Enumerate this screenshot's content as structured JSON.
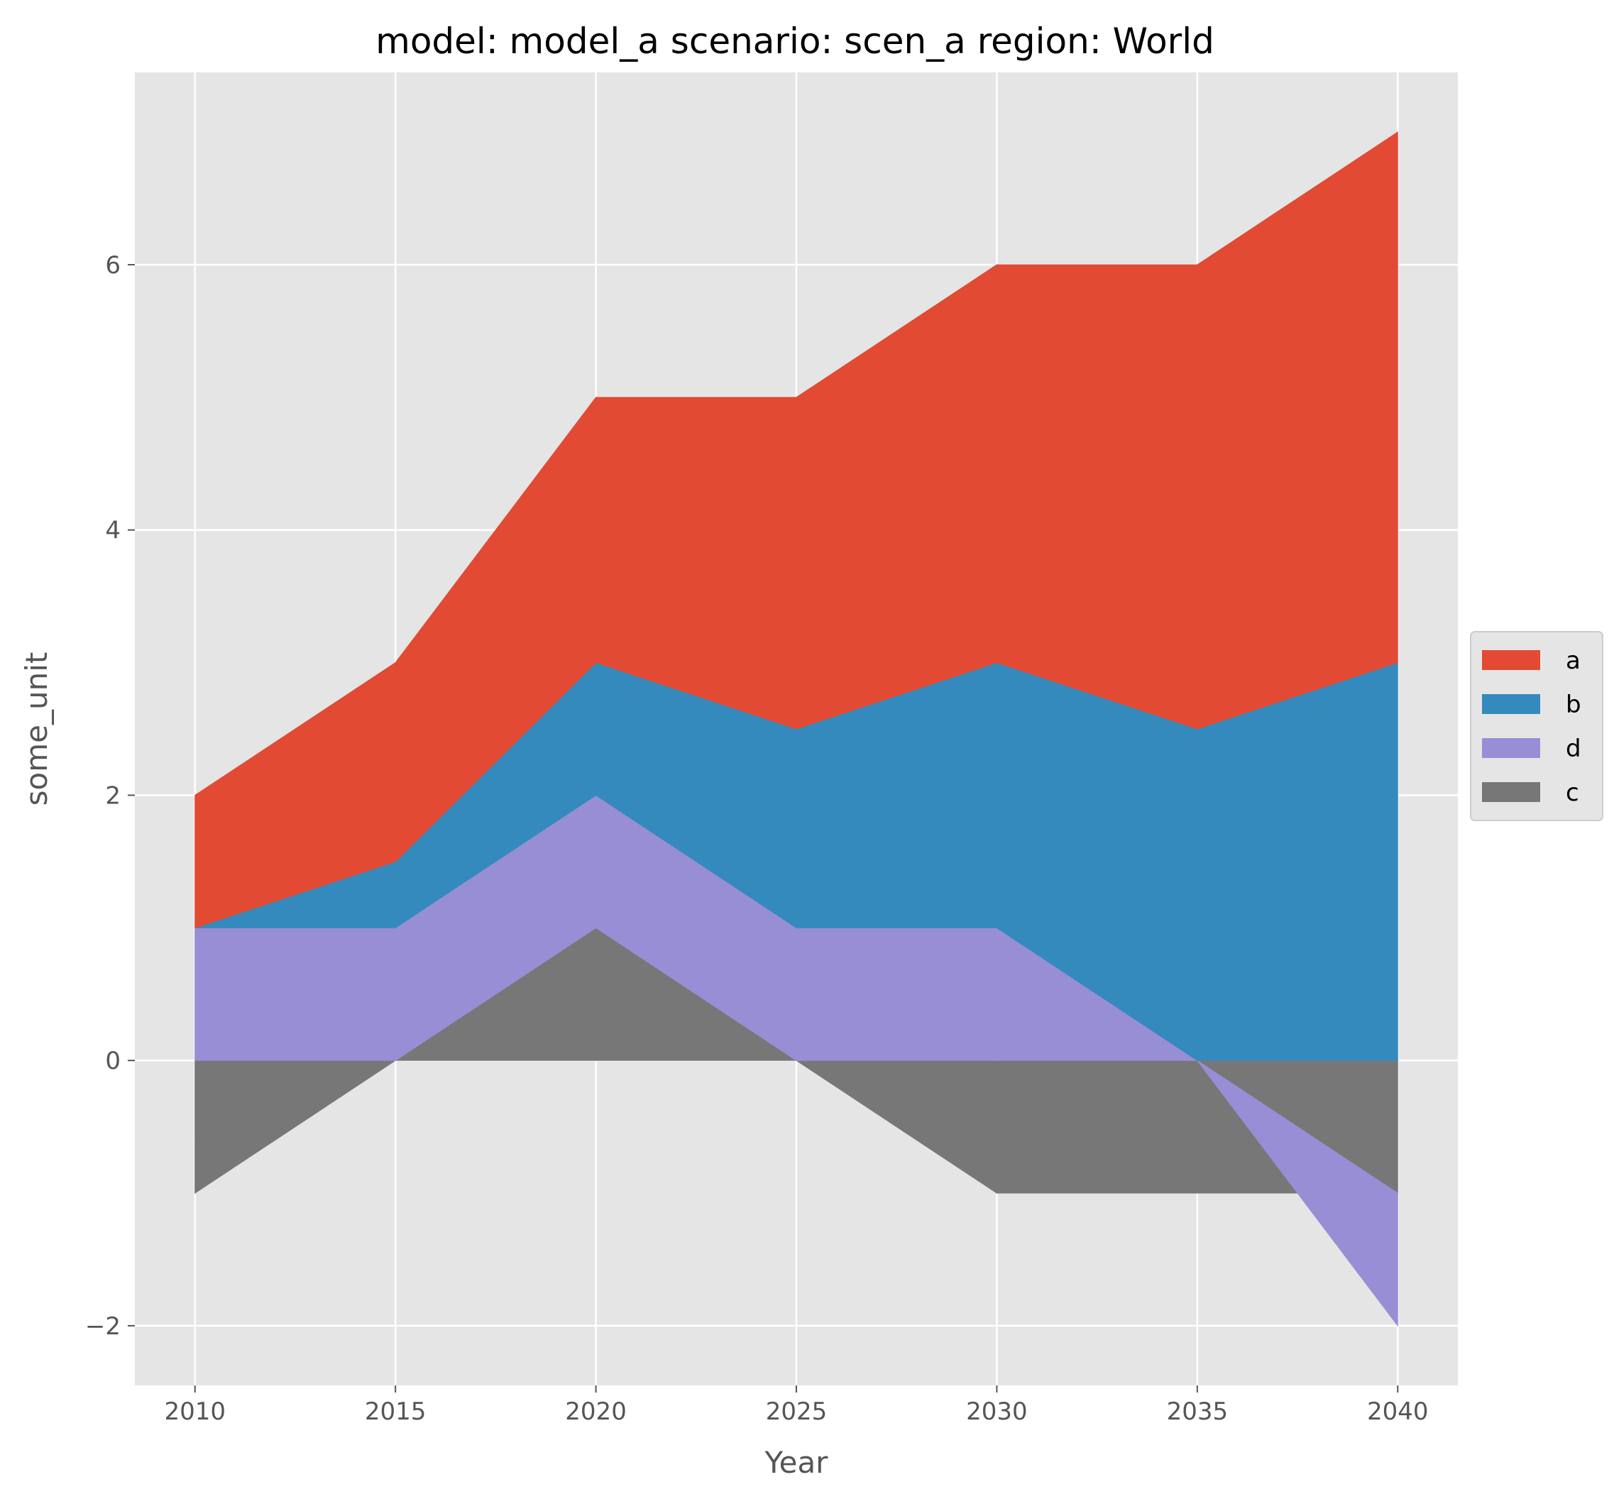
{
  "chart_data": {
    "type": "area",
    "stacked": true,
    "diverging": true,
    "title": "model: model_a scenario: scen_a region: World",
    "xlabel": "Year",
    "ylabel": "some_unit",
    "x": [
      2010,
      2015,
      2020,
      2025,
      2030,
      2035,
      2040
    ],
    "xticks": [
      "2010",
      "2015",
      "2020",
      "2025",
      "2030",
      "2035",
      "2040"
    ],
    "yticks": [
      -2,
      0,
      2,
      4,
      6
    ],
    "ytick_labels": [
      "−2",
      "0",
      "2",
      "4",
      "6"
    ],
    "xlim": [
      2008.5,
      2041.5
    ],
    "ylim": [
      -2.45,
      7.45
    ],
    "grid": true,
    "background": "#e5e5e5",
    "legend_position": "center-right",
    "legend_order": [
      "a",
      "b",
      "d",
      "c"
    ],
    "series": [
      {
        "name": "c",
        "color": "#777777",
        "values": [
          -1,
          0,
          1,
          0,
          -1,
          -1,
          -1
        ]
      },
      {
        "name": "d",
        "color": "#988ed5",
        "values": [
          1,
          1,
          1,
          1,
          1,
          0,
          -1
        ]
      },
      {
        "name": "b",
        "color": "#348abd",
        "values": [
          0,
          0.5,
          1,
          1.5,
          2,
          2.5,
          3
        ]
      },
      {
        "name": "a",
        "color": "#e24a33",
        "values": [
          1,
          1.5,
          2,
          2.5,
          3,
          3.5,
          4
        ]
      }
    ]
  }
}
